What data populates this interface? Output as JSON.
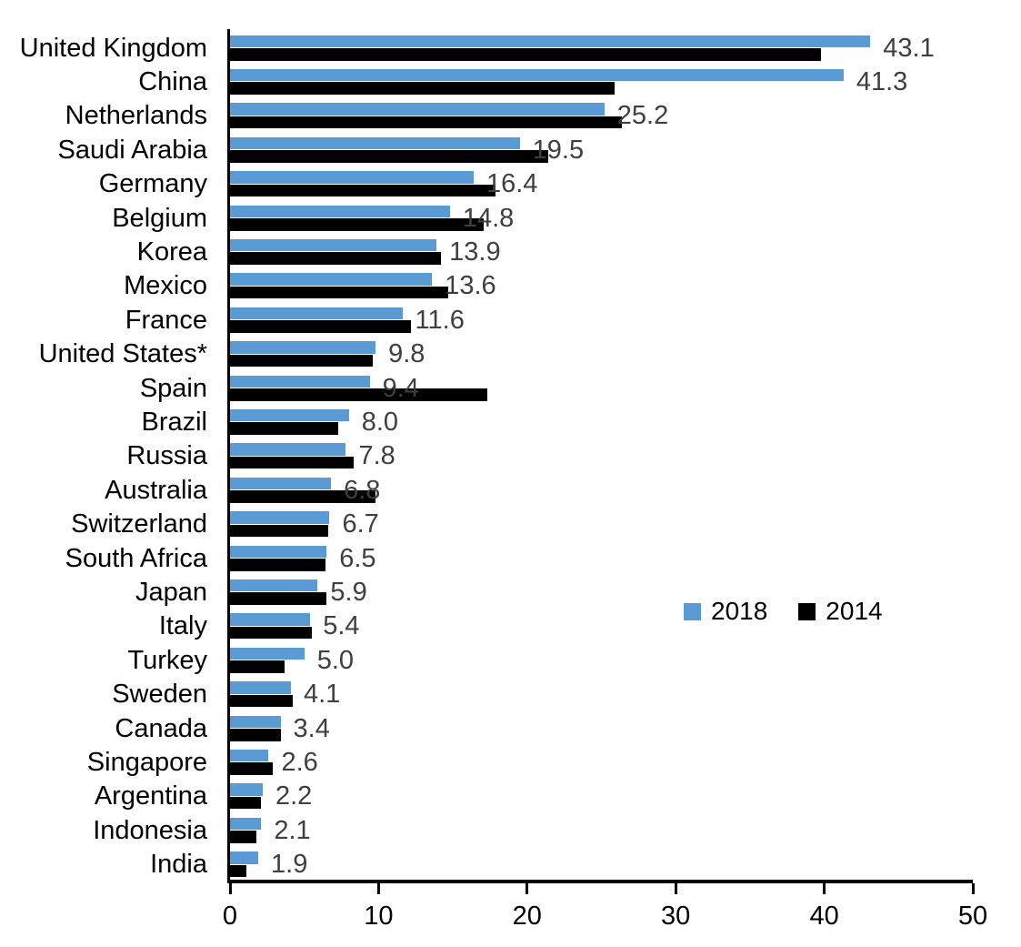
{
  "chart_data": {
    "type": "bar",
    "orientation": "horizontal",
    "title": "",
    "xlabel": "",
    "ylabel": "",
    "grid": false,
    "xlim": [
      0,
      50
    ],
    "x_ticks": [
      "0",
      "10",
      "20",
      "30",
      "40",
      "50"
    ],
    "x_tick_values": [
      0,
      10,
      20,
      30,
      40,
      50
    ],
    "categories": [
      "United Kingdom",
      "China",
      "Netherlands",
      "Saudi Arabia",
      "Germany",
      "Belgium",
      "Korea",
      "Mexico",
      "France",
      "United States*",
      "Spain",
      "Brazil",
      "Russia",
      "Australia",
      "Switzerland",
      "South Africa",
      "Japan",
      "Italy",
      "Turkey",
      "Sweden",
      "Canada",
      "Singapore",
      "Argentina",
      "Indonesia",
      "India"
    ],
    "series": [
      {
        "name": "2018",
        "color": "#5B9BD5",
        "values": [
          43.1,
          41.3,
          25.2,
          19.5,
          16.4,
          14.8,
          13.9,
          13.6,
          11.6,
          9.8,
          9.4,
          8.0,
          7.8,
          6.8,
          6.7,
          6.5,
          5.9,
          5.4,
          5.0,
          4.1,
          3.4,
          2.6,
          2.2,
          2.1,
          1.9
        ]
      },
      {
        "name": "2014",
        "color": "#000000",
        "values": [
          39.8,
          25.9,
          26.4,
          21.4,
          17.9,
          17.1,
          14.2,
          14.7,
          12.2,
          9.6,
          17.3,
          7.3,
          8.3,
          9.8,
          6.6,
          6.4,
          6.5,
          5.5,
          3.7,
          4.2,
          3.4,
          2.9,
          2.1,
          1.8,
          1.1
        ]
      }
    ],
    "value_labels": [
      "43.1",
      "41.3",
      "25.2",
      "19.5",
      "16.4",
      "14.8",
      "13.9",
      "13.6",
      "11.6",
      "9.8",
      "9.4",
      "8.0",
      "7.8",
      "6.8",
      "6.7",
      "6.5",
      "5.9",
      "5.4",
      "5.0",
      "4.1",
      "3.4",
      "2.6",
      "2.2",
      "2.1",
      "1.9"
    ],
    "value_labels_series": "2018",
    "legend": {
      "position": "middle-right",
      "entries": [
        "2018",
        "2014"
      ]
    }
  },
  "colors": {
    "bar_2018": "#5B9BD5",
    "bar_2014": "#000000",
    "value_label": "#3f3f3f",
    "axis": "#000000",
    "background": "#ffffff"
  }
}
